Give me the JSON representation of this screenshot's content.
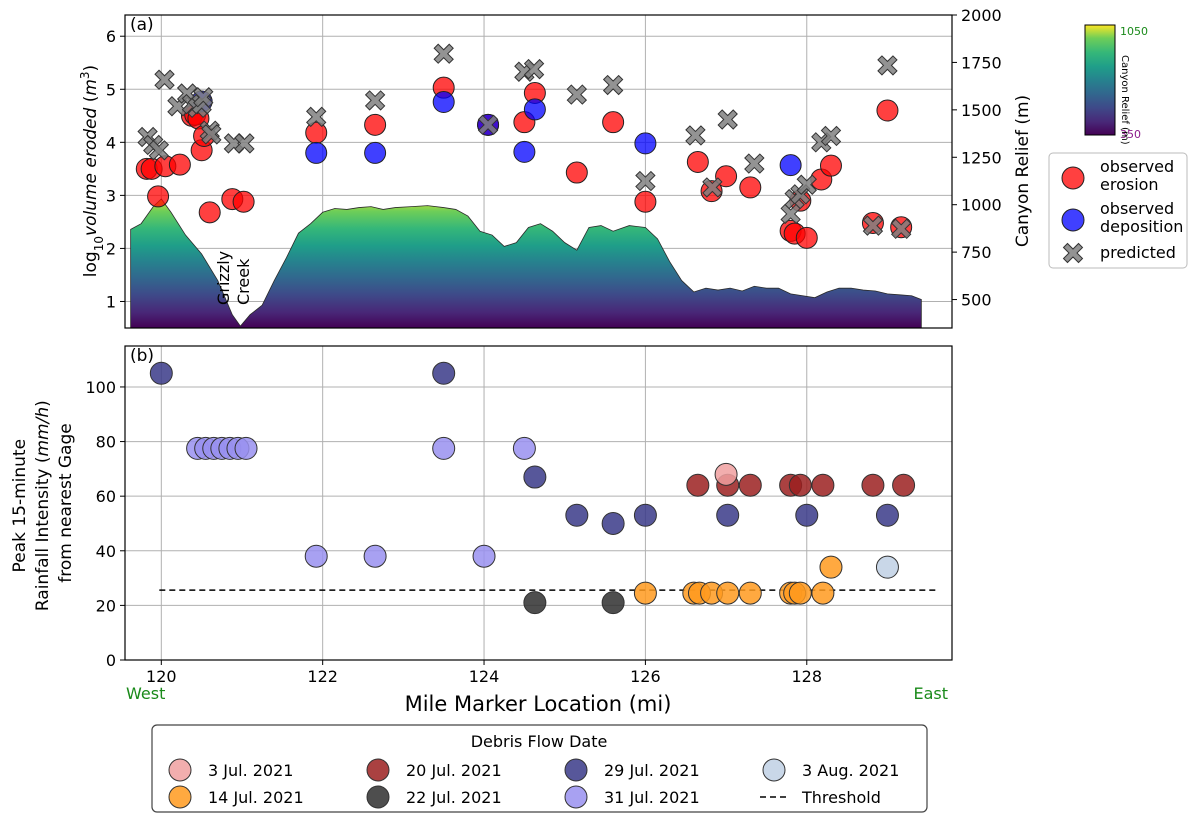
{
  "chart_data": [
    {
      "type": "scatter",
      "panel_label": "(a)",
      "ylabel_left": "log10volume eroded (m3)",
      "ylabel_right": "Canyon Relief (m)",
      "ylim_left": [
        0.5,
        6.4
      ],
      "ylim_right": [
        350,
        2000
      ],
      "xlim": [
        119.55,
        129.8
      ],
      "yticks_left": [
        "1",
        "2",
        "3",
        "4",
        "5",
        "6"
      ],
      "yticks_right": [
        "500",
        "750",
        "1000",
        "1250",
        "1500",
        "1750",
        "2000"
      ],
      "grid": true,
      "annotation": "Grizzly Creek",
      "colorbar": {
        "label": "Canyon Relief (m)",
        "min_label": "350",
        "max_label": "1050",
        "cmap": "viridis"
      },
      "legend": {
        "entries": [
          {
            "key": "erosion",
            "label": "observed erosion",
            "color": "#ff0000"
          },
          {
            "key": "deposition",
            "label": "observed deposition",
            "color": "#0000ff"
          },
          {
            "key": "predicted",
            "label": "predicted",
            "color": "#808080"
          }
        ]
      },
      "relief_profile": {
        "x": [
          119.62,
          119.75,
          119.9,
          120.0,
          120.12,
          120.3,
          120.5,
          120.7,
          120.88,
          120.98,
          121.1,
          121.25,
          121.4,
          121.55,
          121.7,
          121.85,
          122.0,
          122.15,
          122.3,
          122.45,
          122.6,
          122.75,
          122.9,
          123.1,
          123.3,
          123.5,
          123.65,
          123.8,
          123.95,
          124.1,
          124.25,
          124.4,
          124.55,
          124.7,
          124.85,
          125.0,
          125.15,
          125.3,
          125.45,
          125.6,
          125.8,
          126.0,
          126.15,
          126.3,
          126.45,
          126.6,
          126.75,
          126.9,
          127.05,
          127.2,
          127.35,
          127.5,
          127.65,
          127.8,
          127.95,
          128.1,
          128.25,
          128.4,
          128.55,
          128.7,
          128.85,
          129.0,
          129.15,
          129.3,
          129.42
        ],
        "relief": [
          870,
          900,
          990,
          1030,
          960,
          840,
          740,
          600,
          420,
          360,
          420,
          470,
          600,
          720,
          850,
          900,
          960,
          980,
          975,
          985,
          990,
          975,
          985,
          990,
          995,
          985,
          975,
          940,
          860,
          840,
          780,
          800,
          880,
          900,
          860,
          800,
          760,
          880,
          890,
          860,
          890,
          880,
          820,
          700,
          600,
          540,
          560,
          550,
          560,
          545,
          570,
          560,
          560,
          530,
          520,
          510,
          540,
          560,
          560,
          550,
          545,
          530,
          525,
          520,
          500
        ]
      },
      "erosion": {
        "x": [
          119.82,
          119.88,
          119.96,
          120.05,
          120.23,
          120.38,
          120.42,
          120.46,
          120.5,
          120.53,
          120.6,
          120.88,
          121.02,
          121.92,
          122.65,
          123.5,
          124.05,
          124.5,
          124.63,
          125.15,
          125.6,
          126.0,
          126.65,
          126.82,
          127.0,
          127.3,
          127.8,
          127.85,
          127.92,
          128.0,
          128.18,
          128.3,
          128.82,
          129.17,
          129.0
        ],
        "y": [
          3.5,
          3.5,
          2.98,
          3.55,
          3.58,
          4.5,
          4.52,
          4.45,
          3.85,
          4.12,
          2.68,
          2.93,
          2.88,
          4.18,
          4.33,
          5.03,
          4.33,
          4.38,
          4.93,
          3.43,
          4.38,
          2.88,
          3.63,
          3.08,
          3.36,
          3.15,
          2.33,
          2.28,
          2.9,
          2.2,
          3.3,
          3.56,
          2.48,
          2.4,
          4.6
        ]
      },
      "deposition": {
        "x": [
          120.5,
          121.92,
          122.65,
          123.5,
          124.05,
          124.5,
          124.63,
          126.0,
          127.8
        ],
        "y": [
          4.77,
          3.8,
          3.8,
          4.76,
          4.33,
          3.82,
          4.62,
          3.98,
          3.57
        ]
      },
      "predicted": {
        "x": [
          119.83,
          119.9,
          119.97,
          120.04,
          120.2,
          120.32,
          120.38,
          120.45,
          120.5,
          120.52,
          120.6,
          120.62,
          120.9,
          121.03,
          121.92,
          122.65,
          123.5,
          124.05,
          124.5,
          124.62,
          125.15,
          125.6,
          126.0,
          126.62,
          126.83,
          127.02,
          127.35,
          127.8,
          127.85,
          127.92,
          128.0,
          128.18,
          128.3,
          128.82,
          129.17,
          129.0
        ],
        "y": [
          4.1,
          3.95,
          3.85,
          5.18,
          4.68,
          4.92,
          4.72,
          4.65,
          4.72,
          4.85,
          4.22,
          4.15,
          3.98,
          3.98,
          4.48,
          4.79,
          5.67,
          4.33,
          5.33,
          5.38,
          4.9,
          5.08,
          3.27,
          4.13,
          3.15,
          4.43,
          3.6,
          2.65,
          2.93,
          3.02,
          3.2,
          4.0,
          4.12,
          2.43,
          2.37,
          5.45
        ]
      }
    },
    {
      "type": "scatter",
      "panel_label": "(b)",
      "ylabel": "Peak 15-minute Rainfall Intensity (mm/h) from nearest Gage",
      "ylabel_lines": [
        "Peak 15-minute",
        "Rainfall Intensity (mm/h)",
        "from nearest Gage"
      ],
      "xlabel": "Mile Marker Location (mi)",
      "xlim": [
        119.55,
        129.8
      ],
      "ylim": [
        0,
        115
      ],
      "xticks": [
        "120",
        "122",
        "124",
        "126",
        "128"
      ],
      "yticks": [
        "0",
        "20",
        "40",
        "60",
        "80",
        "100"
      ],
      "grid": true,
      "threshold": 25.6,
      "direction_labels": {
        "left": "West",
        "right": "East"
      },
      "legend": {
        "title": "Debris Flow Date",
        "entries": [
          {
            "key": "jul03",
            "label": "3 Jul. 2021",
            "color": "#f0a0a0"
          },
          {
            "key": "jul14",
            "label": "14 Jul. 2021",
            "color": "#ff9a1f"
          },
          {
            "key": "jul20",
            "label": "20 Jul. 2021",
            "color": "#9b2020"
          },
          {
            "key": "jul22",
            "label": "22 Jul. 2021",
            "color": "#2f2f2f"
          },
          {
            "key": "jul29",
            "label": "29 Jul. 2021",
            "color": "#3a3a88"
          },
          {
            "key": "jul31",
            "label": "31 Jul. 2021",
            "color": "#9990f0"
          },
          {
            "key": "aug03",
            "label": "3 Aug. 2021",
            "color": "#c0d0e4"
          },
          {
            "key": "threshold",
            "label": "Threshold",
            "color": "#000000"
          }
        ]
      },
      "series": [
        {
          "key": "jul31",
          "x": [
            120.45,
            120.55,
            120.65,
            120.75,
            120.85,
            120.95,
            121.05,
            121.92,
            122.65,
            123.5,
            124.0,
            124.5
          ],
          "y": [
            77.5,
            77.5,
            77.5,
            77.5,
            77.5,
            77.5,
            77.5,
            38,
            38,
            77.5,
            38,
            77.5
          ]
        },
        {
          "key": "jul29",
          "x": [
            120.0,
            123.5,
            124.63,
            125.15,
            125.6,
            126.0,
            127.02,
            128.0,
            129.0
          ],
          "y": [
            105,
            105,
            67,
            53,
            50,
            53,
            53,
            53,
            53
          ]
        },
        {
          "key": "jul20",
          "x": [
            126.65,
            127.02,
            127.3,
            127.8,
            127.92,
            128.2,
            128.82,
            129.2
          ],
          "y": [
            64,
            64,
            64,
            64,
            64,
            64,
            64,
            64
          ]
        },
        {
          "key": "jul03",
          "x": [
            127.0
          ],
          "y": [
            68
          ]
        },
        {
          "key": "jul14",
          "x": [
            126.0,
            126.6,
            126.67,
            126.82,
            127.02,
            127.3,
            127.8,
            127.85,
            127.92,
            128.2,
            128.3
          ],
          "y": [
            24.5,
            24.5,
            24.5,
            24.5,
            24.5,
            24.5,
            24.5,
            24.5,
            24.5,
            24.5,
            34
          ]
        },
        {
          "key": "jul22",
          "x": [
            124.63,
            125.6
          ],
          "y": [
            21,
            21
          ]
        },
        {
          "key": "aug03",
          "x": [
            129.0
          ],
          "y": [
            34
          ]
        }
      ]
    }
  ]
}
